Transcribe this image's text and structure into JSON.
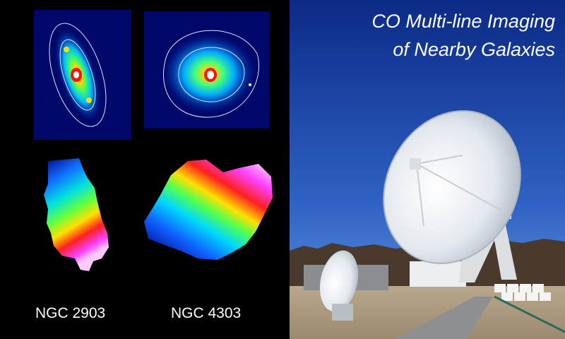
{
  "title": {
    "line1": "CO Multi-line Imaging",
    "line2": "of Nearby Galaxies"
  },
  "galaxies": [
    {
      "name": "NGC 2903"
    },
    {
      "name": "NGC 4303"
    }
  ],
  "colors": {
    "sky_top": "#0b2a86",
    "sky_bottom": "#4f86d6",
    "dish": "#e9edf1",
    "map_background": "#00086a"
  }
}
